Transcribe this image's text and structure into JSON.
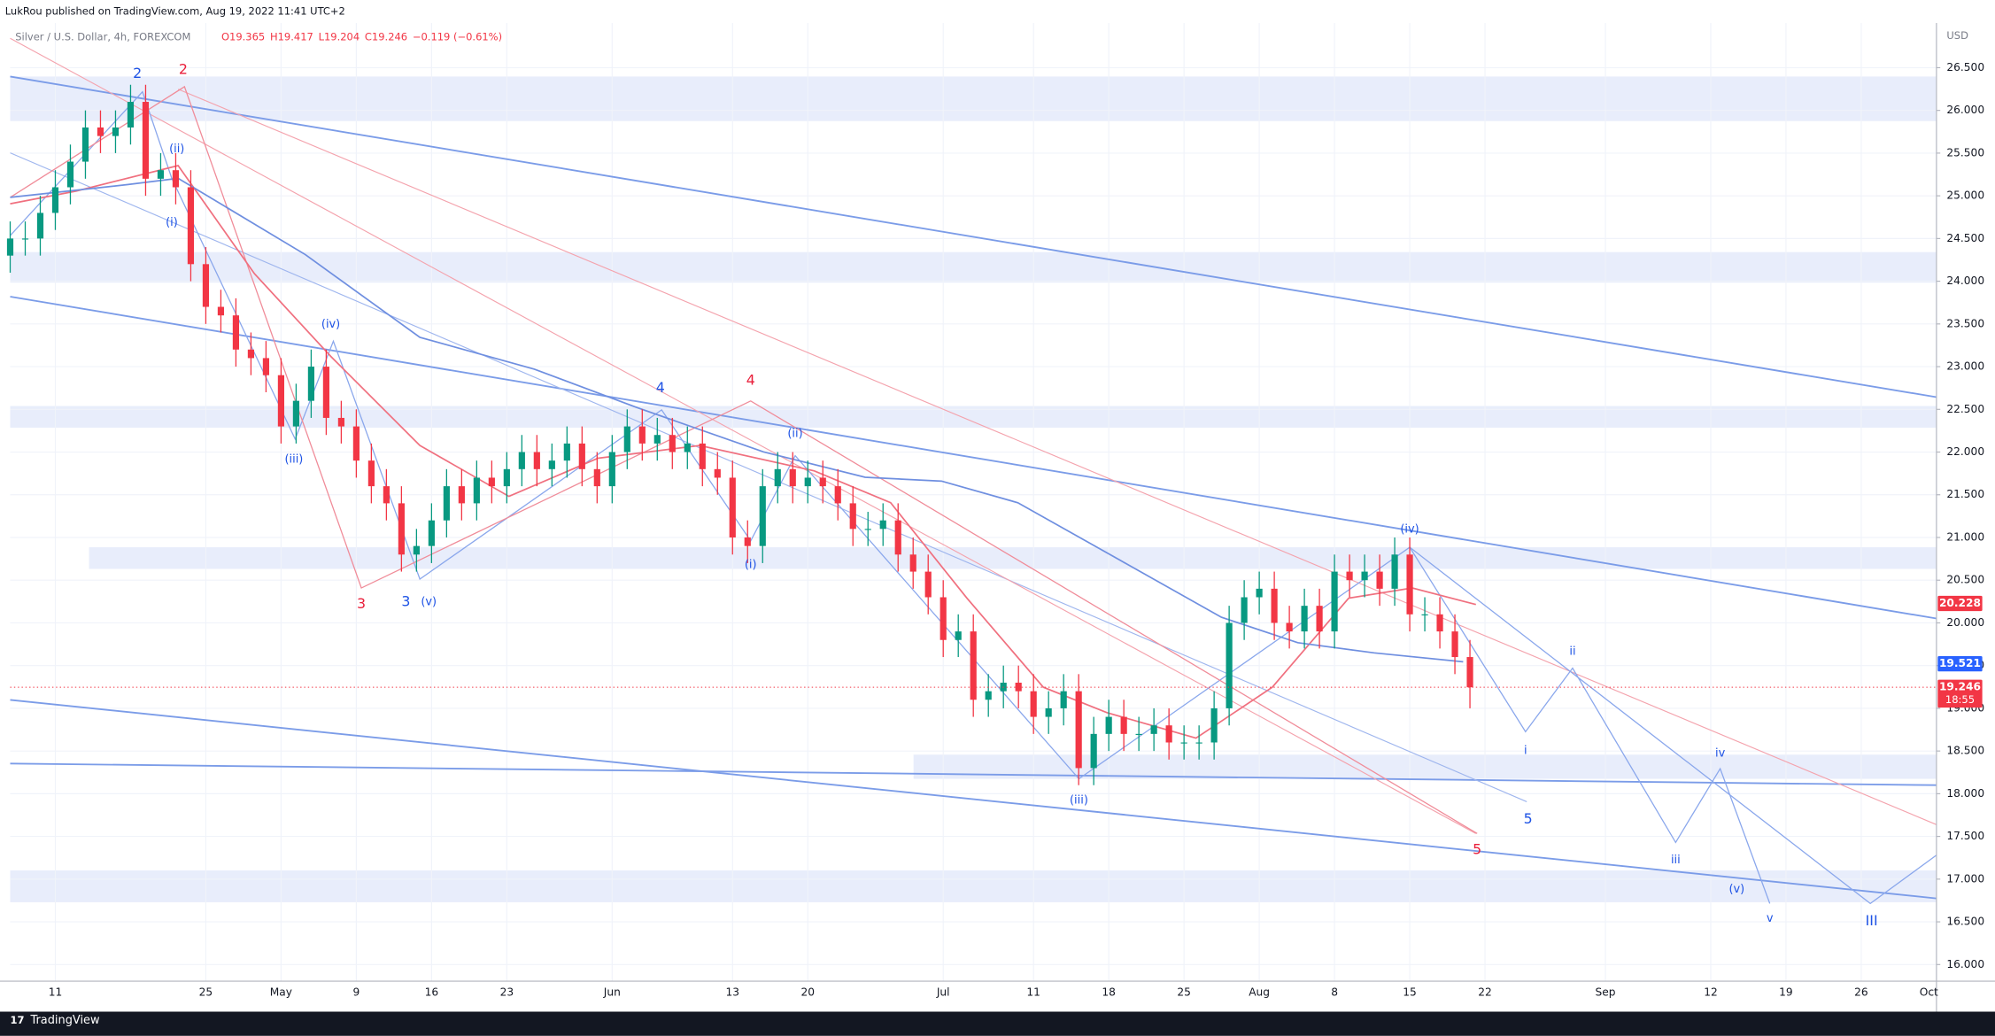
{
  "header": "LukRou published on TradingView.com, Aug 19, 2022 11:41 UTC+2",
  "footer": "TradingView",
  "chart_data": {
    "type": "candlestick",
    "title": "Silver / U.S. Dollar, 4h, FOREXCOM",
    "ohlc_legend": [
      "O19.365",
      "H19.417",
      "L19.204",
      "C19.246",
      "−0.119 (−0.61%)"
    ],
    "y_unit": "USD",
    "x": [
      "Apr 6",
      "Apr 7",
      "Apr 8",
      "Apr 11",
      "Apr 12",
      "Apr 13",
      "Apr 14",
      "Apr 15",
      "Apr 18",
      "Apr 19",
      "Apr 20",
      "Apr 21",
      "Apr 22",
      "Apr 25",
      "Apr 26",
      "Apr 27",
      "Apr 28",
      "Apr 29",
      "May 2",
      "May 3",
      "May 4",
      "May 5",
      "May 6",
      "May 9",
      "May 10",
      "May 11",
      "May 12",
      "May 13",
      "May 16",
      "May 17",
      "May 18",
      "May 19",
      "May 20",
      "May 23",
      "May 24",
      "May 25",
      "May 26",
      "May 27",
      "May 30",
      "May 31",
      "Jun 1",
      "Jun 2",
      "Jun 3",
      "Jun 6",
      "Jun 7",
      "Jun 8",
      "Jun 9",
      "Jun 10",
      "Jun 13",
      "Jun 14",
      "Jun 15",
      "Jun 16",
      "Jun 17",
      "Jun 20",
      "Jun 21",
      "Jun 22",
      "Jun 23",
      "Jun 24",
      "Jun 27",
      "Jun 28",
      "Jun 29",
      "Jun 30",
      "Jul 1",
      "Jul 4",
      "Jul 5",
      "Jul 6",
      "Jul 7",
      "Jul 8",
      "Jul 11",
      "Jul 12",
      "Jul 13",
      "Jul 14",
      "Jul 15",
      "Jul 18",
      "Jul 19",
      "Jul 20",
      "Jul 21",
      "Jul 22",
      "Jul 25",
      "Jul 26",
      "Jul 27",
      "Jul 28",
      "Jul 29",
      "Aug 1",
      "Aug 2",
      "Aug 3",
      "Aug 4",
      "Aug 5",
      "Aug 8",
      "Aug 9",
      "Aug 10",
      "Aug 11",
      "Aug 12",
      "Aug 15",
      "Aug 16",
      "Aug 17",
      "Aug 18",
      "Aug 19"
    ],
    "open": [
      24.3,
      24.5,
      24.5,
      24.8,
      25.1,
      25.4,
      25.8,
      25.7,
      25.8,
      26.1,
      25.2,
      25.3,
      25.1,
      24.2,
      23.7,
      23.6,
      23.2,
      23.1,
      22.9,
      22.3,
      22.6,
      23.0,
      22.4,
      22.3,
      21.9,
      21.6,
      21.4,
      20.8,
      20.9,
      21.2,
      21.6,
      21.4,
      21.7,
      21.6,
      21.8,
      22.0,
      21.8,
      21.9,
      22.1,
      21.8,
      21.6,
      22.0,
      22.3,
      22.1,
      22.2,
      22.0,
      22.1,
      21.8,
      21.7,
      21.0,
      20.9,
      21.6,
      21.8,
      21.6,
      21.7,
      21.6,
      21.4,
      21.1,
      21.1,
      21.2,
      20.8,
      20.6,
      20.3,
      19.8,
      19.9,
      19.1,
      19.2,
      19.3,
      19.2,
      18.9,
      19.0,
      19.2,
      18.3,
      18.7,
      18.9,
      18.7,
      18.7,
      18.8,
      18.6,
      18.6,
      18.6,
      19.0,
      20.0,
      20.3,
      20.4,
      20.0,
      19.9,
      20.2,
      19.9,
      20.6,
      20.5,
      20.6,
      20.4,
      20.8,
      20.1,
      20.1,
      19.9,
      19.6
    ],
    "high": [
      24.7,
      24.7,
      25.0,
      25.3,
      25.6,
      26.0,
      26.0,
      26.0,
      26.3,
      26.3,
      25.5,
      25.5,
      25.3,
      24.4,
      23.9,
      23.8,
      23.4,
      23.3,
      23.1,
      22.8,
      23.2,
      23.2,
      22.6,
      22.5,
      22.1,
      21.8,
      21.6,
      21.1,
      21.4,
      21.8,
      21.8,
      21.9,
      21.9,
      22.0,
      22.2,
      22.2,
      22.1,
      22.3,
      22.3,
      22.0,
      22.2,
      22.5,
      22.5,
      22.4,
      22.4,
      22.3,
      22.3,
      22.0,
      21.9,
      21.2,
      21.8,
      22.0,
      22.0,
      21.9,
      21.9,
      21.8,
      21.6,
      21.3,
      21.4,
      21.4,
      21.0,
      20.8,
      20.5,
      20.1,
      20.1,
      19.4,
      19.5,
      19.5,
      19.4,
      19.2,
      19.4,
      19.4,
      18.9,
      19.1,
      19.1,
      18.9,
      19.0,
      19.0,
      18.8,
      18.8,
      19.2,
      20.2,
      20.5,
      20.6,
      20.6,
      20.2,
      20.4,
      20.4,
      20.8,
      20.8,
      20.8,
      20.8,
      21.0,
      21.0,
      20.3,
      20.3,
      20.1,
      19.8
    ],
    "low": [
      24.1,
      24.3,
      24.3,
      24.6,
      24.9,
      25.2,
      25.5,
      25.5,
      25.6,
      25.0,
      25.0,
      24.9,
      24.0,
      23.5,
      23.4,
      23.0,
      22.9,
      22.7,
      22.1,
      22.1,
      22.4,
      22.2,
      22.1,
      21.7,
      21.4,
      21.2,
      20.6,
      20.6,
      20.7,
      21.0,
      21.2,
      21.2,
      21.4,
      21.4,
      21.6,
      21.6,
      21.6,
      21.7,
      21.6,
      21.4,
      21.4,
      21.8,
      21.9,
      21.9,
      21.8,
      21.8,
      21.6,
      21.5,
      20.8,
      20.7,
      20.7,
      21.4,
      21.4,
      21.4,
      21.4,
      21.2,
      20.9,
      20.9,
      20.9,
      20.6,
      20.4,
      20.1,
      19.6,
      19.6,
      18.9,
      18.9,
      19.0,
      19.0,
      18.7,
      18.7,
      18.8,
      18.1,
      18.1,
      18.5,
      18.5,
      18.5,
      18.5,
      18.4,
      18.4,
      18.4,
      18.4,
      18.8,
      19.8,
      20.1,
      19.8,
      19.7,
      19.7,
      19.7,
      19.7,
      20.3,
      20.3,
      20.2,
      20.2,
      19.9,
      19.9,
      19.7,
      19.4,
      19.0
    ],
    "close": [
      24.5,
      24.5,
      24.8,
      25.1,
      25.4,
      25.8,
      25.7,
      25.8,
      26.1,
      25.2,
      25.3,
      25.1,
      24.2,
      23.7,
      23.6,
      23.2,
      23.1,
      22.9,
      22.3,
      22.6,
      23.0,
      22.4,
      22.3,
      21.9,
      21.6,
      21.4,
      20.8,
      20.9,
      21.2,
      21.6,
      21.4,
      21.7,
      21.6,
      21.8,
      22.0,
      21.8,
      21.9,
      22.1,
      21.8,
      21.6,
      22.0,
      22.3,
      22.1,
      22.2,
      22.0,
      22.1,
      21.8,
      21.7,
      21.0,
      20.9,
      21.6,
      21.8,
      21.6,
      21.7,
      21.6,
      21.4,
      21.1,
      21.1,
      21.2,
      20.8,
      20.6,
      20.3,
      19.8,
      19.9,
      19.1,
      19.2,
      19.3,
      19.2,
      18.9,
      19.0,
      19.2,
      18.3,
      18.7,
      18.9,
      18.7,
      18.7,
      18.8,
      18.6,
      18.6,
      18.6,
      19.0,
      20.0,
      20.3,
      20.4,
      20.0,
      19.9,
      20.2,
      19.9,
      20.6,
      20.5,
      20.6,
      20.4,
      20.8,
      20.1,
      20.1,
      19.9,
      19.6,
      19.246
    ],
    "up_color": "#089981",
    "down_color": "#f23645",
    "xlim": [
      "Apr 6",
      "Oct 1"
    ],
    "xticks": [
      {
        "value": "Apr 11",
        "label": "11"
      },
      {
        "value": "Apr 25",
        "label": "25"
      },
      {
        "value": "May 2",
        "label": "May"
      },
      {
        "value": "May 9",
        "label": "9"
      },
      {
        "value": "May 16",
        "label": "16"
      },
      {
        "value": "May 23",
        "label": "23"
      },
      {
        "value": "Jun 1",
        "label": "Jun"
      },
      {
        "value": "Jun 13",
        "label": "13"
      },
      {
        "value": "Jun 20",
        "label": "20"
      },
      {
        "value": "Jul 1",
        "label": "Jul"
      },
      {
        "value": "Jul 11",
        "label": "11"
      },
      {
        "value": "Jul 18",
        "label": "18"
      },
      {
        "value": "Jul 25",
        "label": "25"
      },
      {
        "value": "Aug 1",
        "label": "Aug"
      },
      {
        "value": "Aug 8",
        "label": "8"
      },
      {
        "value": "Aug 15",
        "label": "15"
      },
      {
        "value": "Aug 22",
        "label": "22"
      },
      {
        "value": "Sep 1",
        "label": "Sep"
      },
      {
        "value": "Sep 12",
        "label": "12"
      },
      {
        "value": "Sep 19",
        "label": "19"
      },
      {
        "value": "Sep 26",
        "label": "26"
      },
      {
        "value": "Oct 1",
        "label": "Oct"
      }
    ],
    "ylim": [
      15.8,
      27.0
    ],
    "yticks": [
      {
        "value": 16,
        "label": "16.000"
      },
      {
        "value": 16.5,
        "label": "16.500"
      },
      {
        "value": 17,
        "label": "17.000"
      },
      {
        "value": 17.5,
        "label": "17.500"
      },
      {
        "value": 18,
        "label": "18.000"
      },
      {
        "value": 18.5,
        "label": "18.500"
      },
      {
        "value": 19,
        "label": "19.000"
      },
      {
        "value": 19.5,
        "label": "19.500"
      },
      {
        "value": 20,
        "label": "20.000"
      },
      {
        "value": 20.5,
        "label": "20.500"
      },
      {
        "value": 21,
        "label": "21.000"
      },
      {
        "value": 21.5,
        "label": "21.500"
      },
      {
        "value": 22,
        "label": "22.000"
      },
      {
        "value": 22.5,
        "label": "22.500"
      },
      {
        "value": 23,
        "label": "23.000"
      },
      {
        "value": 23.5,
        "label": "23.500"
      },
      {
        "value": 24,
        "label": "24.000"
      },
      {
        "value": 24.5,
        "label": "24.500"
      },
      {
        "value": 25,
        "label": "25.000"
      },
      {
        "value": 25.5,
        "label": "25.500"
      },
      {
        "value": 26,
        "label": "26.000"
      },
      {
        "value": 26.5,
        "label": "26.500"
      }
    ],
    "grid": true,
    "price_tags": [
      {
        "value": 20.228,
        "label": "20.228",
        "color": "#f23645"
      },
      {
        "value": 19.521,
        "label": "19.521",
        "color": "#2962ff"
      },
      {
        "value": 19.246,
        "label": "19.246",
        "color": "#f23645",
        "countdown": "18:55"
      }
    ],
    "annotations": [
      {
        "text": "2",
        "color": "#1e53e5"
      },
      {
        "text": "2",
        "color": "#e91e3a"
      },
      {
        "text": "(ii)",
        "color": "#1e53e5"
      },
      {
        "text": "(i)",
        "color": "#1e53e5"
      },
      {
        "text": "(iv)",
        "color": "#1e53e5"
      },
      {
        "text": "(iii)",
        "color": "#1e53e5"
      },
      {
        "text": "3",
        "color": "#e91e3a"
      },
      {
        "text": "3",
        "color": "#1e53e5"
      },
      {
        "text": "(v)",
        "color": "#1e53e5"
      },
      {
        "text": "4",
        "color": "#1e53e5"
      },
      {
        "text": "4",
        "color": "#e91e3a"
      },
      {
        "text": "(ii)",
        "color": "#1e53e5"
      },
      {
        "text": "(i)",
        "color": "#1e53e5"
      },
      {
        "text": "(iv)",
        "color": "#1e53e5"
      },
      {
        "text": "(iii)",
        "color": "#1e53e5"
      },
      {
        "text": "ii",
        "color": "#1e53e5"
      },
      {
        "text": "i",
        "color": "#1e53e5"
      },
      {
        "text": "iv",
        "color": "#1e53e5"
      },
      {
        "text": "5",
        "color": "#1e53e5"
      },
      {
        "text": "5",
        "color": "#e91e3a"
      },
      {
        "text": "iii",
        "color": "#1e53e5"
      },
      {
        "text": "(v)",
        "color": "#1e53e5"
      },
      {
        "text": "v",
        "color": "#1e53e5"
      },
      {
        "text": "III",
        "color": "#1e53e5"
      }
    ]
  }
}
